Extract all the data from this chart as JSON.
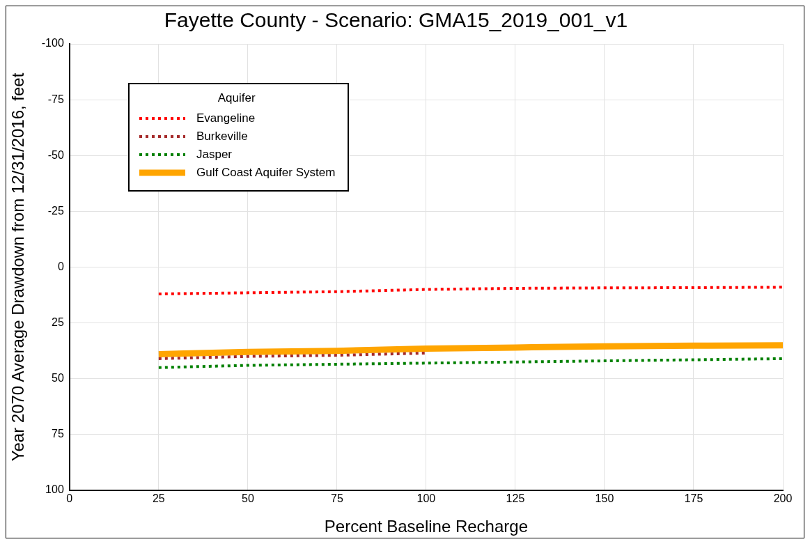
{
  "chart_data": {
    "type": "line",
    "title": "Fayette County - Scenario: GMA15_2019_001_v1",
    "xlabel": "Percent Baseline Recharge",
    "ylabel": "Year 2070 Average Drawdown from 12/31/2016, feet",
    "legend_title": "Aquifer",
    "x": [
      25,
      50,
      75,
      100,
      125,
      150,
      175,
      200
    ],
    "series": [
      {
        "name": "Evangeline",
        "color": "#ff0000",
        "line_style": "dotted",
        "values": [
          12,
          11.5,
          11,
          10,
          9.5,
          9.3,
          9.2,
          9
        ]
      },
      {
        "name": "Burkeville",
        "color": "#a52a2a",
        "line_style": "dotted",
        "values": [
          41,
          40,
          39.5,
          38.5,
          null,
          null,
          null,
          null
        ]
      },
      {
        "name": "Jasper",
        "color": "#008000",
        "line_style": "dotted",
        "values": [
          45,
          44,
          43.5,
          43,
          42.5,
          42,
          41.5,
          41
        ]
      },
      {
        "name": "Gulf Coast Aquifer System",
        "color": "#ffa500",
        "line_style": "solid",
        "values": [
          39,
          38,
          37.5,
          36.5,
          36,
          35.5,
          35.2,
          35
        ]
      }
    ],
    "xlim": [
      0,
      200
    ],
    "xticks": [
      0,
      25,
      50,
      75,
      100,
      125,
      150,
      175,
      200
    ],
    "ylim": [
      100,
      -100
    ],
    "yticks": [
      -100,
      -75,
      -50,
      -25,
      0,
      25,
      50,
      75,
      100
    ],
    "grid": true,
    "legend": "top left",
    "marker": "none"
  }
}
